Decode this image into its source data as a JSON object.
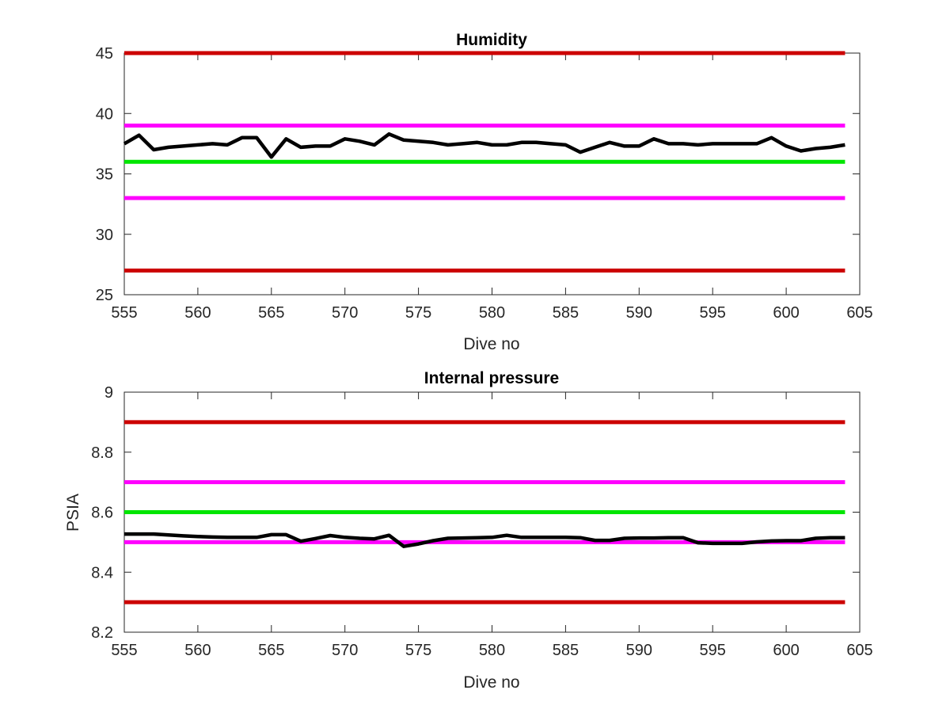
{
  "chart_data": [
    {
      "type": "line",
      "title": "Humidity",
      "xlabel": "Dive no",
      "ylabel": "",
      "xlim": [
        555,
        605
      ],
      "ylim": [
        25,
        45
      ],
      "xticks": [
        555,
        560,
        565,
        570,
        575,
        580,
        585,
        590,
        595,
        600,
        605
      ],
      "yticks": [
        25,
        30,
        35,
        40,
        45
      ],
      "grid": false,
      "reference_lines": [
        {
          "y": 45,
          "color": "#cc0000"
        },
        {
          "y": 39,
          "color": "#ff00ff"
        },
        {
          "y": 36,
          "color": "#00e600"
        },
        {
          "y": 33,
          "color": "#ff00ff"
        },
        {
          "y": 27,
          "color": "#cc0000"
        }
      ],
      "ref_x_range": [
        555,
        604
      ],
      "series": [
        {
          "color": "#000000",
          "x": [
            555,
            556,
            557,
            558,
            559,
            560,
            561,
            562,
            563,
            564,
            565,
            566,
            567,
            568,
            569,
            570,
            571,
            572,
            573,
            574,
            575,
            576,
            577,
            578,
            579,
            580,
            581,
            582,
            583,
            584,
            585,
            586,
            587,
            588,
            589,
            590,
            591,
            592,
            593,
            594,
            595,
            596,
            597,
            598,
            599,
            600,
            601,
            602,
            603,
            604
          ],
          "values": [
            37.5,
            38.2,
            37.0,
            37.2,
            37.3,
            37.4,
            37.5,
            37.4,
            38.0,
            38.0,
            36.4,
            37.9,
            37.2,
            37.3,
            37.3,
            37.9,
            37.7,
            37.4,
            38.3,
            37.8,
            37.7,
            37.6,
            37.4,
            37.5,
            37.6,
            37.4,
            37.4,
            37.6,
            37.6,
            37.5,
            37.4,
            36.8,
            37.2,
            37.6,
            37.3,
            37.3,
            37.9,
            37.5,
            37.5,
            37.4,
            37.5,
            37.5,
            37.5,
            37.5,
            38.0,
            37.3,
            36.9,
            37.1,
            37.2,
            37.4
          ]
        }
      ]
    },
    {
      "type": "line",
      "title": "Internal pressure",
      "xlabel": "Dive no",
      "ylabel": "PSIA",
      "xlim": [
        555,
        605
      ],
      "ylim": [
        8.2,
        9
      ],
      "xticks": [
        555,
        560,
        565,
        570,
        575,
        580,
        585,
        590,
        595,
        600,
        605
      ],
      "yticks": [
        "8.2",
        "8.4",
        "8.6",
        "8.8",
        "9"
      ],
      "grid": false,
      "reference_lines": [
        {
          "y": 8.9,
          "color": "#cc0000"
        },
        {
          "y": 8.7,
          "color": "#ff00ff"
        },
        {
          "y": 8.6,
          "color": "#00e600"
        },
        {
          "y": 8.5,
          "color": "#ff00ff"
        },
        {
          "y": 8.3,
          "color": "#cc0000"
        }
      ],
      "ref_x_range": [
        555,
        604
      ],
      "series": [
        {
          "color": "#000000",
          "x": [
            555,
            556,
            557,
            558,
            559,
            560,
            561,
            562,
            563,
            564,
            565,
            566,
            567,
            568,
            569,
            570,
            571,
            572,
            573,
            574,
            575,
            576,
            577,
            578,
            579,
            580,
            581,
            582,
            583,
            584,
            585,
            586,
            587,
            588,
            589,
            590,
            591,
            592,
            593,
            594,
            595,
            596,
            597,
            598,
            599,
            600,
            601,
            602,
            603,
            604
          ],
          "values": [
            8.527,
            8.527,
            8.527,
            8.524,
            8.521,
            8.519,
            8.517,
            8.516,
            8.516,
            8.516,
            8.525,
            8.525,
            8.503,
            8.512,
            8.522,
            8.516,
            8.513,
            8.511,
            8.523,
            8.486,
            8.494,
            8.505,
            8.513,
            8.514,
            8.515,
            8.516,
            8.523,
            8.516,
            8.516,
            8.516,
            8.516,
            8.515,
            8.506,
            8.506,
            8.513,
            8.514,
            8.514,
            8.515,
            8.515,
            8.498,
            8.496,
            8.496,
            8.496,
            8.501,
            8.504,
            8.505,
            8.505,
            8.513,
            8.515,
            8.515
          ]
        }
      ]
    }
  ]
}
